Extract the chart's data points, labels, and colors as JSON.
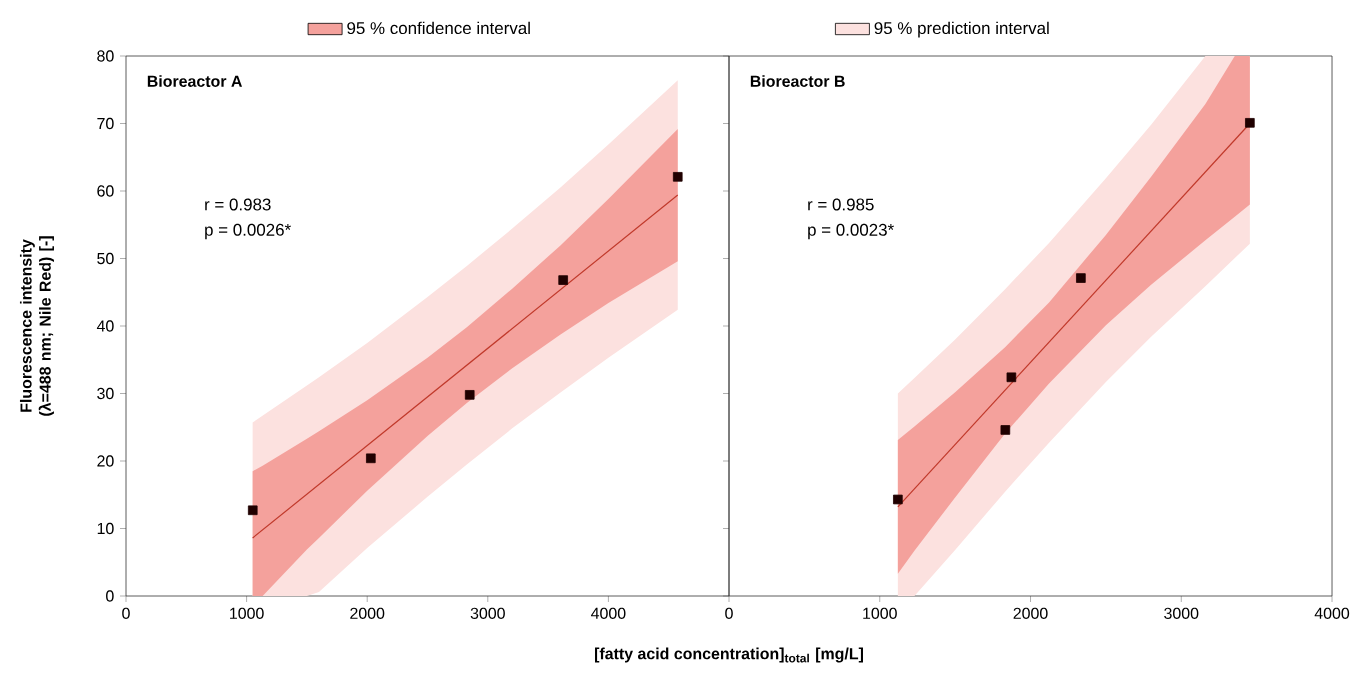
{
  "chart_data": [
    {
      "type": "scatter",
      "title": "Bioreactor A",
      "xlabel": "[fatty acid concentration]$_{total}$  [mg/L]",
      "ylabel": "Fluorescence intensity (λ=488 nm; Nile Red)  [-]",
      "xlim": [
        0,
        5000
      ],
      "ylim": [
        0,
        80
      ],
      "xticks": [
        0,
        1000,
        2000,
        3000,
        4000
      ],
      "yticks": [
        0,
        10,
        20,
        30,
        40,
        50,
        60,
        70,
        80
      ],
      "legend": "top",
      "annotations": [
        "r = 0.983",
        "p = 0.0026*"
      ],
      "series": [
        {
          "type": "line",
          "name": "95 % confidence interval",
          "color": "#f4a19c",
          "x": [
            1050,
            1133,
            1500,
            1600,
            2000,
            2500,
            2826,
            3200,
            3600,
            4000,
            4575
          ],
          "values": [
            null,
            null,
            null,
            null,
            null,
            null,
            null,
            null,
            null,
            null,
            null
          ],
          "lower": [
            0,
            0,
            6.9,
            8.6,
            15.6,
            23.7,
            28.6,
            33.7,
            38.7,
            43.4,
            49.6
          ],
          "upper": [
            18.5,
            19.3,
            23.3,
            24.4,
            29.0,
            35.3,
            39.8,
            45.5,
            51.9,
            58.8,
            69.2
          ]
        },
        {
          "type": "line",
          "name": "95 % prediction interval",
          "color": "#fce1df",
          "x": [
            1050,
            1500,
            1600,
            2000,
            2500,
            2826,
            3200,
            3600,
            4000,
            4575
          ],
          "values": [
            null,
            null,
            null,
            null,
            null,
            null,
            null,
            null,
            null,
            null
          ],
          "lower": [
            0,
            0,
            0.6,
            7.1,
            14.7,
            19.5,
            24.8,
            30.1,
            35.3,
            42.4
          ],
          "upper": [
            25.7,
            31.2,
            32.4,
            37.5,
            44.3,
            48.9,
            54.4,
            60.5,
            66.9,
            76.4
          ]
        },
        {
          "type": "line",
          "color": "#c0392b",
          "x": [
            1050,
            4575
          ],
          "values": [
            8.6,
            59.4
          ]
        },
        {
          "color": "#200000",
          "marker": "square",
          "x": [
            1051,
            2030,
            2850,
            3625,
            4575
          ],
          "values": [
            12.7,
            20.4,
            29.8,
            46.8,
            62.1
          ]
        }
      ]
    },
    {
      "type": "scatter",
      "title": "Bioreactor B",
      "xlim": [
        0,
        4000
      ],
      "ylim": [
        0,
        80
      ],
      "xticks": [
        0,
        1000,
        2000,
        3000,
        4000
      ],
      "yticks": [
        0,
        10,
        20,
        30,
        40,
        50,
        60,
        70,
        80
      ],
      "tick_labels": "x",
      "annotations": [
        "r = 0.985",
        "p = 0.0023*"
      ],
      "series": [
        {
          "type": "line",
          "color": "#f4a19c",
          "x": [
            1120,
            1230,
            1500,
            1833,
            2123,
            2500,
            2800,
            3160,
            3355,
            3455
          ],
          "values": [
            null,
            null,
            null,
            null,
            null,
            null,
            null,
            null,
            null,
            null
          ],
          "lower": [
            3.3,
            6.7,
            14.6,
            24.1,
            31.5,
            40.1,
            46.1,
            52.7,
            56.2,
            58.0
          ],
          "upper": [
            23.1,
            25.1,
            30.2,
            36.9,
            43.5,
            53.5,
            62.1,
            72.9,
            80,
            80
          ]
        },
        {
          "type": "line",
          "color": "#fce1df",
          "x": [
            1120,
            1230,
            1500,
            1833,
            2123,
            2500,
            2800,
            3160,
            3455
          ],
          "values": [
            null,
            null,
            null,
            null,
            null,
            null,
            null,
            null,
            null
          ],
          "lower": [
            0,
            0,
            6.8,
            15.5,
            22.7,
            31.7,
            38.4,
            45.9,
            52.2
          ],
          "upper": [
            30.0,
            32.3,
            38.0,
            45.5,
            52.3,
            61.9,
            69.8,
            80,
            80
          ]
        },
        {
          "type": "line",
          "color": "#c0392b",
          "x": [
            1120,
            3455
          ],
          "values": [
            13.2,
            70.0
          ]
        },
        {
          "color": "#200000",
          "marker": "square",
          "x": [
            1120,
            1833,
            1873,
            2334,
            3455
          ],
          "values": [
            14.3,
            24.6,
            32.4,
            47.1,
            70.1
          ]
        }
      ]
    }
  ]
}
